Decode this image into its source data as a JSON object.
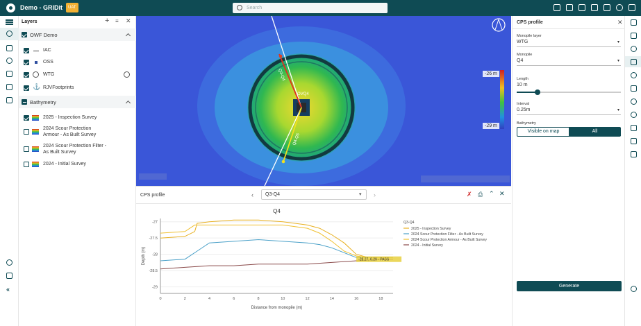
{
  "app": {
    "title": "Demo - GRIDit",
    "badge": "UAT"
  },
  "search": {
    "placeholder": "Search"
  },
  "top_icons": [
    "settings-icon",
    "grid-icon",
    "grid-icon",
    "image-icon",
    "layout-icon",
    "help-icon",
    "grid-icon"
  ],
  "layers": {
    "title": "Layers",
    "group1": {
      "name": "OWF Demo",
      "items": [
        {
          "label": "IAC",
          "checked": true
        },
        {
          "label": "OSS",
          "checked": true
        },
        {
          "label": "WTG",
          "checked": true
        },
        {
          "label": "RJVFootprints",
          "checked": true
        }
      ]
    },
    "group2": {
      "name": "Bathymetry",
      "items": [
        {
          "label": "2025 - Inspection Survey",
          "checked": true
        },
        {
          "label": "2024 Scour Protection",
          "label2": "Armour - As Built Survey",
          "checked": false
        },
        {
          "label": "2024 Scour Protection Filter -",
          "label2": "As Built Survey",
          "checked": false
        },
        {
          "label": "2024 - Initial Survey",
          "checked": false
        }
      ]
    }
  },
  "map": {
    "colors": {
      "low": "#3a56d8",
      "mid": "#40b850",
      "high": "#f0d030"
    },
    "legend_top": "-26 m",
    "legend_bottom": "-29 m",
    "label_upper": "Q3-Q4",
    "label_lower": "Q4-Q5",
    "wtg_label": "OVQ4"
  },
  "cps_bottom": {
    "title": "CPS profile",
    "selected": "Q3-Q4"
  },
  "chart_data": {
    "type": "line",
    "title": "Q4",
    "xlabel": "Distance from monopile (m)",
    "ylabel": "Depth (m)",
    "xlim": [
      0,
      19
    ],
    "ylim": [
      -29.2,
      -26.9
    ],
    "xticks": [
      0,
      2,
      4,
      6,
      8,
      10,
      12,
      14,
      16,
      18
    ],
    "yticks": [
      -27,
      -27.5,
      -28,
      -28.5,
      -29
    ],
    "legend_title": "Q3-Q4",
    "series": [
      {
        "name": "2025 - Inspection Survey",
        "color": "#e8b020",
        "x": [
          0,
          2,
          2.8,
          3,
          4,
          6,
          8,
          10,
          11,
          12,
          13,
          14,
          15,
          16,
          17,
          18,
          19
        ],
        "y": [
          -27.5,
          -27.45,
          -27.3,
          -27.05,
          -27,
          -26.95,
          -26.95,
          -27,
          -27.05,
          -27.1,
          -27.2,
          -27.4,
          -27.65,
          -28,
          -28.1,
          -28.1,
          -28.1
        ]
      },
      {
        "name": "2024 Scour Protection Filter - As Built Survey",
        "color": "#4aa0c8",
        "x": [
          0,
          2,
          3,
          4,
          6,
          8,
          10,
          12,
          13,
          14,
          15,
          16,
          17,
          18,
          19
        ],
        "y": [
          -28.2,
          -28.15,
          -27.9,
          -27.65,
          -27.6,
          -27.55,
          -27.6,
          -27.65,
          -27.7,
          -27.8,
          -27.95,
          -28.1,
          -28.1,
          -28.1,
          -28.1
        ]
      },
      {
        "name": "2024 Scour Protection Armour - As Built Survey",
        "color": "#f0c030",
        "x": [
          0,
          2,
          2.8,
          3,
          4,
          6,
          8,
          10,
          12,
          13,
          14,
          15,
          16,
          17,
          18,
          19
        ],
        "y": [
          -27.35,
          -27.3,
          -27.1,
          -27.1,
          -27.1,
          -27.1,
          -27.1,
          -27.1,
          -27.2,
          -27.35,
          -27.6,
          -27.9,
          -28.05,
          -28.1,
          -28.1,
          -28.1
        ]
      },
      {
        "name": "2024 - Initial Survey",
        "color": "#8a4a4a",
        "x": [
          0,
          2,
          4,
          6,
          8,
          10,
          12,
          14,
          16,
          18,
          19
        ],
        "y": [
          -28.45,
          -28.4,
          -28.35,
          -28.35,
          -28.3,
          -28.3,
          -28.3,
          -28.25,
          -28.2,
          -28.15,
          -28.15
        ]
      }
    ],
    "tooltip": "-28.27, 0.29 - PASS"
  },
  "right": {
    "title": "CPS profile",
    "monopile_layer_label": "Monopile layer",
    "monopile_layer": "WTG",
    "monopile_label": "Monopile",
    "monopile": "Q4",
    "length_label": "Length",
    "length": "10 m",
    "length_fraction": 0.2,
    "interval_label": "Interval",
    "interval": "0.25m",
    "bathymetry_label": "Bathymetry",
    "btn_visible": "Visible on map",
    "btn_all": "All",
    "generate": "Generate"
  }
}
